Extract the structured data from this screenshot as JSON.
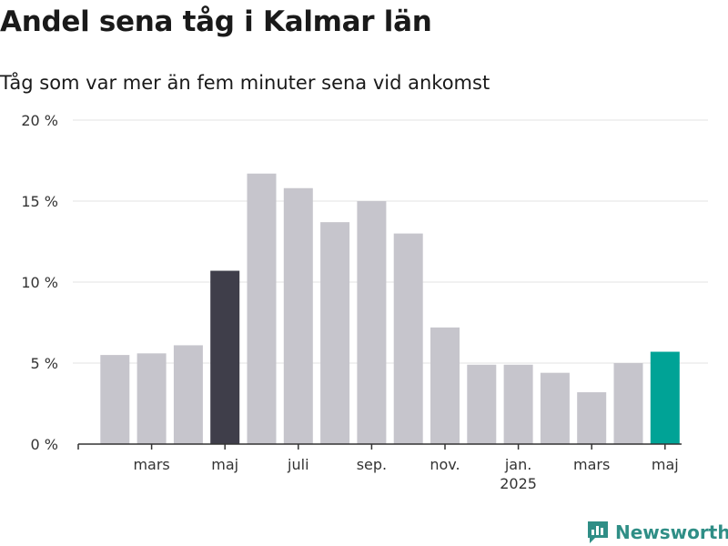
{
  "title": "Andel sena tåg i Kalmar län",
  "subtitle": "Tåg som var mer än fem minuter sena vid ankomst",
  "brand": {
    "name": "Newsworthy",
    "icon": "bar-chart-speech-bubble-icon"
  },
  "colors": {
    "bar": "#c6c5cc",
    "highlight_prev": "#3f3e4a",
    "highlight_latest": "#00a396",
    "grid": "#e3e3e3",
    "axis": "#333333"
  },
  "chart_data": {
    "type": "bar",
    "categories": [
      "2024-02",
      "2024-03",
      "2024-04",
      "2024-05",
      "2024-06",
      "2024-07",
      "2024-08",
      "2024-09",
      "2024-10",
      "2024-11",
      "2024-12",
      "2025-01",
      "2025-02",
      "2025-03",
      "2025-04",
      "2025-05"
    ],
    "values": [
      5.5,
      5.6,
      6.1,
      10.7,
      16.7,
      15.8,
      13.7,
      15.0,
      13.0,
      7.2,
      4.9,
      4.9,
      4.4,
      3.2,
      5.0,
      5.7
    ],
    "highlight": {
      "2024-05": "previous",
      "2025-05": "latest"
    },
    "ylim": [
      0,
      20
    ],
    "yticks": [
      {
        "value": 0,
        "label": "0 %"
      },
      {
        "value": 5,
        "label": "5 %"
      },
      {
        "value": 10,
        "label": "10 %"
      },
      {
        "value": 15,
        "label": "15 %"
      },
      {
        "value": 20,
        "label": "20 %"
      }
    ],
    "xticks": [
      {
        "index": 1,
        "label": "mars"
      },
      {
        "index": 3,
        "label": "maj"
      },
      {
        "index": 5,
        "label": "juli"
      },
      {
        "index": 7,
        "label": "sep."
      },
      {
        "index": 9,
        "label": "nov."
      },
      {
        "index": 11,
        "label": "jan.",
        "sublabel": "2025"
      },
      {
        "index": 13,
        "label": "mars"
      },
      {
        "index": 15,
        "label": "maj"
      }
    ],
    "grid": true,
    "legend": "none"
  }
}
